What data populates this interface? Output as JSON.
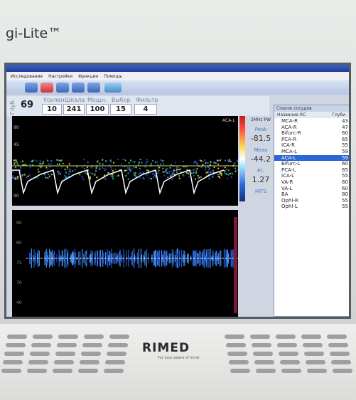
{
  "device": {
    "brand": "gi-Lite™",
    "logo": "RIMED",
    "tagline": "For your peace of mind"
  },
  "menu": [
    "Исследование",
    "Настройки",
    "Функции",
    "Помощь"
  ],
  "parameters": [
    {
      "label": "Глуб.",
      "value": 69
    },
    {
      "label": "Усилен.",
      "value": 10
    },
    {
      "label": "Шкала",
      "value": 241
    },
    {
      "label": "Мощн.",
      "value": 100
    },
    {
      "label": "Выбор",
      "value": 15
    },
    {
      "label": "Фильтр",
      "value": 4
    }
  ],
  "spectrum": {
    "probe": "ACA-L",
    "frequency": "2MHz PW",
    "peak_label": "Peak",
    "peak": -81.5,
    "mean_label": "Mean",
    "mean": -44.2,
    "pi_label": "P.I.",
    "pi": 1.27,
    "hits_label": "HITS",
    "scale": [
      90,
      45,
      0,
      45,
      90
    ]
  },
  "lower_scale": [
    90,
    80,
    75,
    70,
    40
  ],
  "vessel_list": {
    "title": "Список сосудов",
    "columns": [
      "Название КС",
      "Глуби"
    ],
    "rows": [
      [
        "MCA-R",
        43
      ],
      [
        "ACA-R",
        47
      ],
      [
        "Bifurc-R",
        60
      ],
      [
        "PCA-R",
        65
      ],
      [
        "ICA-R",
        55
      ],
      [
        "MCA-L",
        59
      ],
      [
        "ACA-L",
        59
      ],
      [
        "Bifurc-L",
        60
      ],
      [
        "PCA-L",
        65
      ],
      [
        "ICA-L",
        55
      ],
      [
        "VA-R",
        60
      ],
      [
        "VA-L",
        60
      ],
      [
        "BA",
        80
      ],
      [
        "Ophl-R",
        55
      ],
      [
        "Ophl-L",
        55
      ]
    ]
  }
}
